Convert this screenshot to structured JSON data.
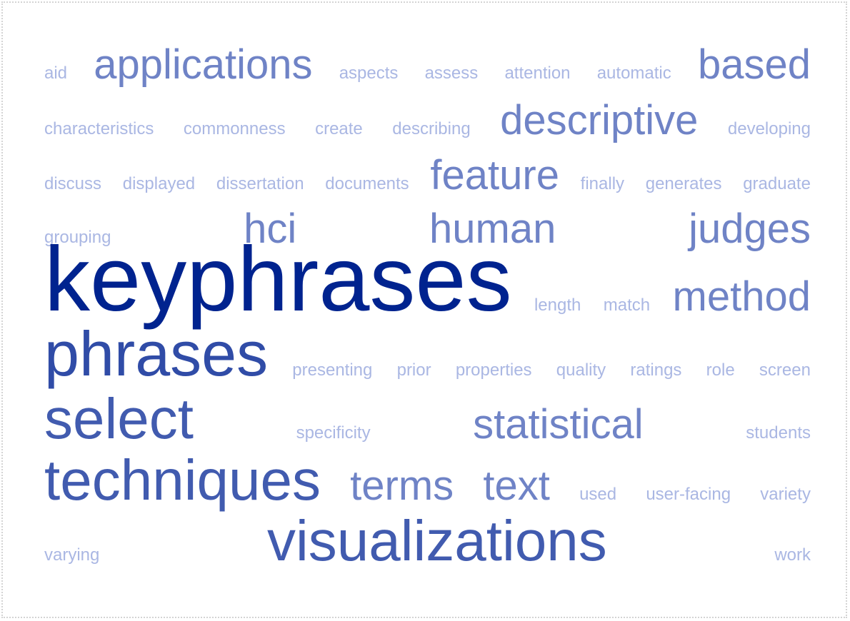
{
  "colors": {
    "strong": "#00238f",
    "low": "#aab7e3",
    "border": "#d4d4d4"
  },
  "lines": [
    {
      "words": [
        {
          "text": "aid",
          "weight": 0.0
        },
        {
          "text": "applications",
          "weight": 0.35
        },
        {
          "text": "aspects",
          "weight": 0.0
        },
        {
          "text": "assess",
          "weight": 0.0
        },
        {
          "text": "attention",
          "weight": 0.0
        },
        {
          "text": "automatic",
          "weight": 0.0
        },
        {
          "text": "based",
          "weight": 0.35
        }
      ]
    },
    {
      "words": [
        {
          "text": "characteristics",
          "weight": 0.0
        },
        {
          "text": "commonness",
          "weight": 0.0
        },
        {
          "text": "create",
          "weight": 0.0
        },
        {
          "text": "describing",
          "weight": 0.0
        },
        {
          "text": "descriptive",
          "weight": 0.35
        },
        {
          "text": "developing",
          "weight": 0.0
        }
      ]
    },
    {
      "words": [
        {
          "text": "discuss",
          "weight": 0.0
        },
        {
          "text": "displayed",
          "weight": 0.0
        },
        {
          "text": "dissertation",
          "weight": 0.0
        },
        {
          "text": "documents",
          "weight": 0.0
        },
        {
          "text": "feature",
          "weight": 0.35
        },
        {
          "text": "finally",
          "weight": 0.0
        },
        {
          "text": "generates",
          "weight": 0.0
        },
        {
          "text": "graduate",
          "weight": 0.0
        }
      ]
    },
    {
      "words": [
        {
          "text": "grouping",
          "weight": 0.0
        },
        {
          "text": "hci",
          "weight": 0.35
        },
        {
          "text": "human",
          "weight": 0.35
        },
        {
          "text": "judges",
          "weight": 0.35
        }
      ]
    },
    {
      "words": [
        {
          "text": "keyphrases",
          "weight": 1.0
        },
        {
          "text": "length",
          "weight": 0.0
        },
        {
          "text": "match",
          "weight": 0.0
        },
        {
          "text": "method",
          "weight": 0.35
        }
      ]
    },
    {
      "words": [
        {
          "text": "phrases",
          "weight": 0.72
        },
        {
          "text": "presenting",
          "weight": 0.0
        },
        {
          "text": "prior",
          "weight": 0.0
        },
        {
          "text": "properties",
          "weight": 0.0
        },
        {
          "text": "quality",
          "weight": 0.0
        },
        {
          "text": "ratings",
          "weight": 0.0
        },
        {
          "text": "role",
          "weight": 0.0
        },
        {
          "text": "screen",
          "weight": 0.0
        }
      ]
    },
    {
      "words": [
        {
          "text": "select",
          "weight": 0.62
        },
        {
          "text": "specificity",
          "weight": 0.0
        },
        {
          "text": "statistical",
          "weight": 0.35
        },
        {
          "text": "students",
          "weight": 0.0
        }
      ]
    },
    {
      "words": [
        {
          "text": "techniques",
          "weight": 0.62
        },
        {
          "text": "terms",
          "weight": 0.35
        },
        {
          "text": "text",
          "weight": 0.35
        },
        {
          "text": "used",
          "weight": 0.0
        },
        {
          "text": "user-facing",
          "weight": 0.0
        },
        {
          "text": "variety",
          "weight": 0.0
        }
      ]
    },
    {
      "words": [
        {
          "text": "varying",
          "weight": 0.0
        },
        {
          "text": "visualizations",
          "weight": 0.62
        },
        {
          "text": "work",
          "weight": 0.0
        }
      ]
    }
  ]
}
